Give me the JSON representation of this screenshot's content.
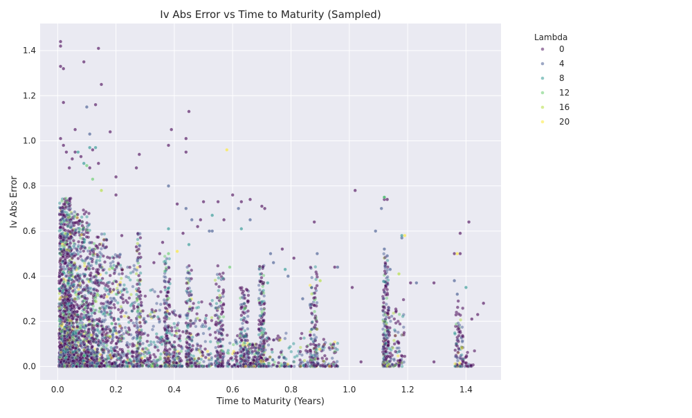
{
  "chart_data": {
    "type": "scatter",
    "title": "Iv Abs Error vs Time to Maturity (Sampled)",
    "xlabel": "Time to Maturity (Years)",
    "ylabel": "Iv Abs Error",
    "xlim": [
      -0.06,
      1.52
    ],
    "ylim": [
      -0.06,
      1.52
    ],
    "xticks": [
      0.0,
      0.2,
      0.4,
      0.6,
      0.8,
      1.0,
      1.2,
      1.4
    ],
    "xtick_labels": [
      "0.0",
      "0.2",
      "0.4",
      "0.6",
      "0.8",
      "1.0",
      "1.2",
      "1.4"
    ],
    "yticks": [
      0.0,
      0.2,
      0.4,
      0.6,
      0.8,
      1.0,
      1.2,
      1.4
    ],
    "ytick_labels": [
      "0.0",
      "0.2",
      "0.4",
      "0.6",
      "0.8",
      "1.0",
      "1.2",
      "1.4"
    ],
    "grid": true,
    "legend": {
      "title": "Lambda",
      "placement": "outside-upper-right",
      "entries": [
        {
          "label": "0",
          "color": "#440154"
        },
        {
          "label": "4",
          "color": "#3b528b"
        },
        {
          "label": "8",
          "color": "#21918c"
        },
        {
          "label": "12",
          "color": "#5ec962"
        },
        {
          "label": "16",
          "color": "#addc30"
        },
        {
          "label": "20",
          "color": "#fde725"
        }
      ]
    },
    "hue_colors": [
      "#440154",
      "#3b528b",
      "#21918c",
      "#5ec962",
      "#addc30",
      "#fde725"
    ],
    "series": [
      {
        "name": "0",
        "points": [
          [
            0.01,
            1.44
          ],
          [
            0.01,
            1.42
          ],
          [
            0.01,
            1.33
          ],
          [
            0.02,
            1.32
          ],
          [
            0.02,
            1.17
          ],
          [
            0.09,
            1.35
          ],
          [
            0.14,
            1.41
          ],
          [
            0.13,
            1.16
          ],
          [
            0.15,
            1.25
          ],
          [
            0.18,
            1.04
          ],
          [
            0.06,
            1.05
          ],
          [
            0.39,
            1.05
          ],
          [
            0.44,
            1.01
          ],
          [
            0.44,
            0.95
          ],
          [
            0.45,
            1.13
          ],
          [
            0.38,
            0.98
          ],
          [
            0.28,
            0.94
          ],
          [
            0.27,
            0.88
          ],
          [
            0.55,
            0.73
          ],
          [
            0.63,
            0.73
          ],
          [
            0.66,
            0.74
          ],
          [
            0.7,
            0.71
          ],
          [
            0.71,
            0.7
          ],
          [
            0.88,
            0.64
          ],
          [
            1.02,
            0.78
          ],
          [
            1.12,
            0.74
          ],
          [
            1.13,
            0.74
          ],
          [
            1.38,
            0.59
          ],
          [
            1.38,
            0.5
          ],
          [
            1.36,
            0.5
          ],
          [
            1.41,
            0.64
          ],
          [
            1.21,
            0.37
          ],
          [
            1.29,
            0.37
          ],
          [
            1.42,
            0.21
          ],
          [
            1.44,
            0.23
          ],
          [
            1.46,
            0.28
          ],
          [
            1.29,
            0.02
          ],
          [
            1.04,
            0.02
          ],
          [
            1.01,
            0.35
          ],
          [
            0.81,
            0.48
          ],
          [
            0.77,
            0.52
          ],
          [
            0.95,
            0.44
          ],
          [
            0.5,
            0.73
          ],
          [
            0.41,
            0.72
          ],
          [
            0.43,
            0.59
          ],
          [
            0.57,
            0.65
          ],
          [
            0.6,
            0.76
          ],
          [
            0.48,
            0.62
          ],
          [
            0.49,
            0.65
          ],
          [
            0.36,
            0.55
          ],
          [
            0.35,
            0.5
          ],
          [
            0.33,
            0.46
          ],
          [
            0.27,
            0.53
          ],
          [
            0.22,
            0.58
          ],
          [
            0.2,
            0.84
          ],
          [
            0.2,
            0.76
          ],
          [
            0.14,
            0.9
          ],
          [
            0.12,
            0.96
          ],
          [
            0.11,
            0.88
          ],
          [
            0.08,
            0.93
          ],
          [
            0.06,
            0.95
          ],
          [
            0.05,
            0.92
          ],
          [
            0.04,
            0.88
          ],
          [
            0.03,
            0.95
          ],
          [
            0.02,
            0.98
          ],
          [
            0.01,
            1.01
          ]
        ]
      },
      {
        "name": "4",
        "points": [
          [
            0.1,
            1.15
          ],
          [
            0.11,
            1.03
          ],
          [
            0.38,
            0.8
          ],
          [
            0.53,
            0.6
          ],
          [
            0.62,
            0.7
          ],
          [
            0.66,
            0.65
          ],
          [
            0.89,
            0.5
          ],
          [
            0.96,
            0.44
          ],
          [
            1.09,
            0.6
          ],
          [
            1.11,
            0.7
          ],
          [
            1.18,
            0.57
          ],
          [
            1.23,
            0.37
          ],
          [
            1.12,
            0.52
          ],
          [
            1.13,
            0.49
          ],
          [
            1.14,
            0.43
          ],
          [
            1.36,
            0.38
          ],
          [
            1.37,
            0.32
          ],
          [
            0.73,
            0.5
          ],
          [
            0.79,
            0.4
          ],
          [
            0.84,
            0.3
          ],
          [
            0.74,
            0.46
          ],
          [
            0.44,
            0.7
          ],
          [
            0.46,
            0.65
          ],
          [
            0.52,
            0.6
          ]
        ]
      },
      {
        "name": "8",
        "points": [
          [
            0.11,
            0.97
          ],
          [
            0.13,
            0.97
          ],
          [
            0.07,
            0.95
          ],
          [
            0.09,
            0.9
          ],
          [
            0.53,
            0.67
          ],
          [
            0.63,
            0.61
          ],
          [
            1.12,
            0.75
          ],
          [
            1.18,
            0.58
          ],
          [
            1.4,
            0.35
          ],
          [
            0.78,
            0.43
          ],
          [
            0.72,
            0.37
          ],
          [
            0.38,
            0.61
          ],
          [
            0.45,
            0.54
          ]
        ]
      },
      {
        "name": "12",
        "points": [
          [
            0.1,
            0.89
          ],
          [
            0.12,
            0.83
          ],
          [
            0.59,
            0.44
          ],
          [
            1.12,
            0.75
          ],
          [
            0.38,
            0.5
          ]
        ]
      },
      {
        "name": "16",
        "points": [
          [
            0.15,
            0.78
          ],
          [
            1.17,
            0.41
          ],
          [
            0.9,
            0.38
          ]
        ]
      },
      {
        "name": "20",
        "points": [
          [
            0.58,
            0.96
          ],
          [
            0.41,
            0.51
          ],
          [
            1.19,
            0.58
          ],
          [
            1.37,
            0.5
          ]
        ]
      }
    ],
    "dense_clusters": [
      {
        "x": [
          0.005,
          0.05
        ],
        "y": [
          0.0,
          0.75
        ],
        "count": 1300,
        "shape": 2.5
      },
      {
        "x": [
          0.05,
          0.11
        ],
        "y": [
          0.0,
          0.7
        ],
        "count": 750,
        "shape": 2.3
      },
      {
        "x": [
          0.11,
          0.17
        ],
        "y": [
          0.0,
          0.6
        ],
        "count": 420,
        "shape": 2.0
      },
      {
        "x": [
          0.17,
          0.22
        ],
        "y": [
          0.0,
          0.5
        ],
        "count": 240,
        "shape": 2.0
      },
      {
        "x": [
          0.22,
          0.265
        ],
        "y": [
          0.0,
          0.45
        ],
        "count": 130,
        "shape": 2.2
      },
      {
        "x": [
          0.27,
          0.285
        ],
        "y": [
          0.0,
          0.6
        ],
        "count": 150,
        "shape": 2.0
      },
      {
        "x": [
          0.285,
          0.36
        ],
        "y": [
          0.0,
          0.35
        ],
        "count": 150,
        "shape": 2.5
      },
      {
        "x": [
          0.365,
          0.385
        ],
        "y": [
          0.0,
          0.5
        ],
        "count": 160,
        "shape": 2.0
      },
      {
        "x": [
          0.39,
          0.43
        ],
        "y": [
          0.0,
          0.25
        ],
        "count": 110,
        "shape": 2.5
      },
      {
        "x": [
          0.44,
          0.46
        ],
        "y": [
          0.0,
          0.45
        ],
        "count": 150,
        "shape": 2.2
      },
      {
        "x": [
          0.46,
          0.53
        ],
        "y": [
          0.0,
          0.3
        ],
        "count": 110,
        "shape": 2.5
      },
      {
        "x": [
          0.54,
          0.57
        ],
        "y": [
          0.0,
          0.45
        ],
        "count": 150,
        "shape": 2.2
      },
      {
        "x": [
          0.58,
          0.62
        ],
        "y": [
          0.0,
          0.15
        ],
        "count": 45,
        "shape": 2.5
      },
      {
        "x": [
          0.625,
          0.655
        ],
        "y": [
          0.0,
          0.35
        ],
        "count": 170,
        "shape": 2.2
      },
      {
        "x": [
          0.655,
          0.69
        ],
        "y": [
          0.0,
          0.1
        ],
        "count": 110,
        "shape": 2.5
      },
      {
        "x": [
          0.69,
          0.71
        ],
        "y": [
          0.0,
          0.45
        ],
        "count": 180,
        "shape": 2.0
      },
      {
        "x": [
          0.71,
          0.86
        ],
        "y": [
          0.0,
          0.15
        ],
        "count": 120,
        "shape": 2.5
      },
      {
        "x": [
          0.865,
          0.89
        ],
        "y": [
          0.0,
          0.45
        ],
        "count": 150,
        "shape": 2.2
      },
      {
        "x": [
          0.89,
          0.96
        ],
        "y": [
          0.0,
          0.12
        ],
        "count": 70,
        "shape": 2.5
      },
      {
        "x": [
          1.115,
          1.135
        ],
        "y": [
          0.0,
          0.5
        ],
        "count": 200,
        "shape": 2.0
      },
      {
        "x": [
          1.135,
          1.19
        ],
        "y": [
          0.0,
          0.3
        ],
        "count": 90,
        "shape": 2.5
      },
      {
        "x": [
          1.36,
          1.39
        ],
        "y": [
          0.0,
          0.3
        ],
        "count": 80,
        "shape": 2.2
      },
      {
        "x": [
          1.39,
          1.43
        ],
        "y": [
          0.0,
          0.08
        ],
        "count": 20,
        "shape": 2.5
      }
    ]
  }
}
